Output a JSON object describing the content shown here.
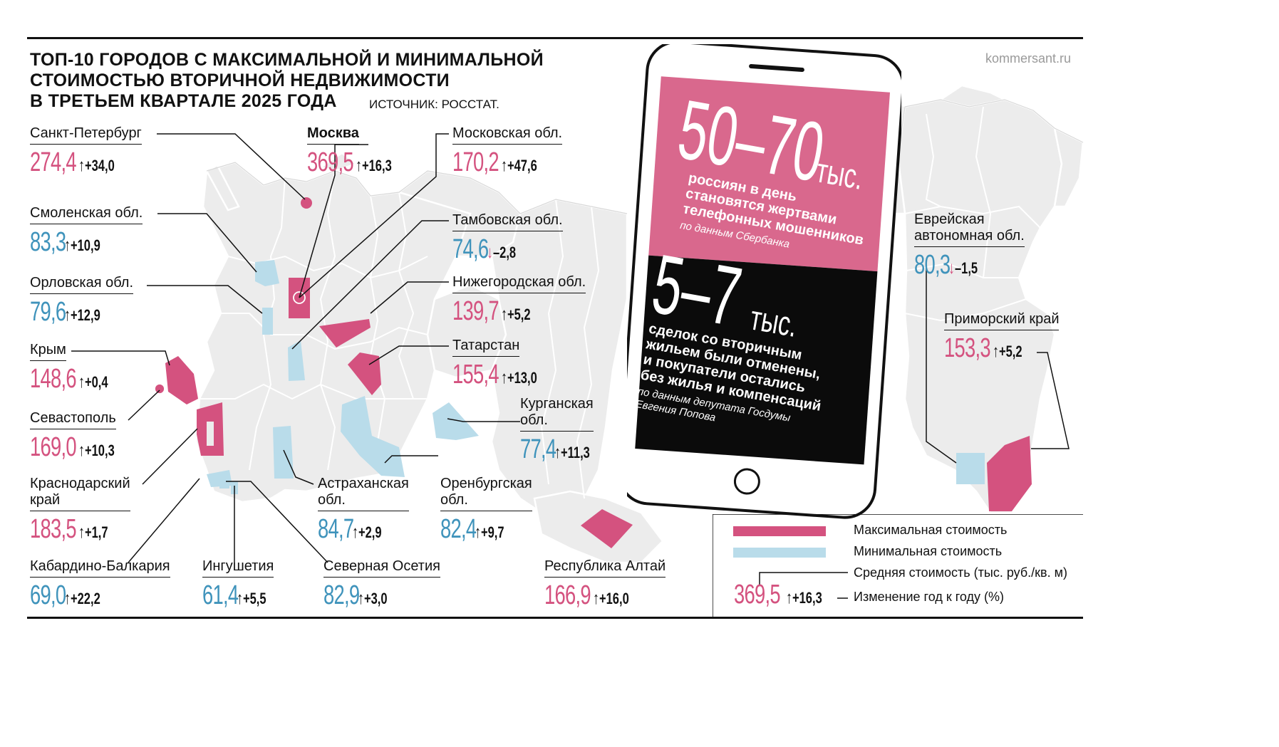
{
  "title": {
    "line1": "ТОП-10 ГОРОДОВ С МАКСИМАЛЬНОЙ И МИНИМАЛЬНОЙ",
    "line2": "СТОИМОСТЬЮ ВТОРИЧНОЙ НЕДВИЖИМОСТИ",
    "line3": "В ТРЕТЬЕМ КВАРТАЛЕ 2025 ГОДА"
  },
  "source": "ИСТОЧНИК: РОССТАТ.",
  "site": "kommersant.ru",
  "colors": {
    "max": "#d4527f",
    "min": "#3f93bb",
    "map_fill": "#ececec",
    "map_stroke": "#ffffff"
  },
  "regions": [
    {
      "id": "spb",
      "name": "Санкт-Петербург",
      "value": "274,4",
      "change": "+34,0",
      "direction": "up",
      "category": "max"
    },
    {
      "id": "moscow",
      "name": "Москва",
      "value": "369,5",
      "change": "+16,3",
      "direction": "up",
      "category": "max"
    },
    {
      "id": "mosobl",
      "name": "Московская обл.",
      "value": "170,2",
      "change": "+47,6",
      "direction": "up",
      "category": "max"
    },
    {
      "id": "smolensk",
      "name": "Смоленская обл.",
      "value": "83,3",
      "change": "+10,9",
      "direction": "up",
      "category": "min"
    },
    {
      "id": "tambov",
      "name": "Тамбовская обл.",
      "value": "74,6",
      "change": "–2,8",
      "direction": "down",
      "category": "min"
    },
    {
      "id": "oryol",
      "name": "Орловская обл.",
      "value": "79,6",
      "change": "+12,9",
      "direction": "up",
      "category": "min"
    },
    {
      "id": "nizhny",
      "name": "Нижегородская обл.",
      "value": "139,7",
      "change": "+5,2",
      "direction": "up",
      "category": "max"
    },
    {
      "id": "crimea",
      "name": "Крым",
      "value": "148,6",
      "change": "+0,4",
      "direction": "up",
      "category": "max"
    },
    {
      "id": "tatarstan",
      "name": "Татарстан",
      "value": "155,4",
      "change": "+13,0",
      "direction": "up",
      "category": "max"
    },
    {
      "id": "sevastopol",
      "name": "Севастополь",
      "value": "169,0",
      "change": "+10,3",
      "direction": "up",
      "category": "max"
    },
    {
      "id": "kurgan",
      "name": "Курганская\nобл.",
      "value": "77,4",
      "change": "+11,3",
      "direction": "up",
      "category": "min"
    },
    {
      "id": "krasnodar",
      "name": "Краснодарский\nкрай",
      "value": "183,5",
      "change": "+1,7",
      "direction": "up",
      "category": "max"
    },
    {
      "id": "astrakhan",
      "name": "Астраханская\nобл.",
      "value": "84,7",
      "change": "+2,9",
      "direction": "up",
      "category": "min"
    },
    {
      "id": "orenburg",
      "name": "Оренбургская\nобл.",
      "value": "82,4",
      "change": "+9,7",
      "direction": "up",
      "category": "min"
    },
    {
      "id": "kbr",
      "name": "Кабардино-Балкария",
      "value": "69,0",
      "change": "+22,2",
      "direction": "up",
      "category": "min"
    },
    {
      "id": "ingushetia",
      "name": "Ингушетия",
      "value": "61,4",
      "change": "+5,5",
      "direction": "up",
      "category": "min"
    },
    {
      "id": "osetia",
      "name": "Северная Осетия",
      "value": "82,9",
      "change": "+3,0",
      "direction": "up",
      "category": "min"
    },
    {
      "id": "altai",
      "name": "Республика Алтай",
      "value": "166,9",
      "change": "+16,0",
      "direction": "up",
      "category": "max"
    },
    {
      "id": "jewish",
      "name": "Еврейская\nавтономная обл.",
      "value": "80,3",
      "change": "–1,5",
      "direction": "down",
      "category": "min"
    },
    {
      "id": "primorsky",
      "name": "Приморский край",
      "value": "153,3",
      "change": "+5,2",
      "direction": "up",
      "category": "max"
    }
  ],
  "phone": {
    "stat1_number": "50–70",
    "stat1_unit": "тыс.",
    "stat1_line1": "россиян в день",
    "stat1_line2": "становятся жертвами",
    "stat1_line3": "телефонных мошенников",
    "stat1_source": "по данным Сбербанка",
    "stat2_number": "5–7",
    "stat2_unit": "тыс.",
    "stat2_line1": "сделок со вторичным",
    "stat2_line2": "жильем были отменены,",
    "stat2_line3": "и покупатели остались",
    "stat2_line4": "без жилья и компенсаций",
    "stat2_source_line1": "по данным депутата Госдумы",
    "stat2_source_line2": "Евгения Попова"
  },
  "legend": {
    "max_label": "Максимальная стоимость",
    "min_label": "Минимальная стоимость",
    "avg_label": "Средняя стоимость (тыс. руб./кв. м)",
    "change_label": "Изменение год к году (%)",
    "example_value": "369,5",
    "example_change": "+16,3"
  }
}
